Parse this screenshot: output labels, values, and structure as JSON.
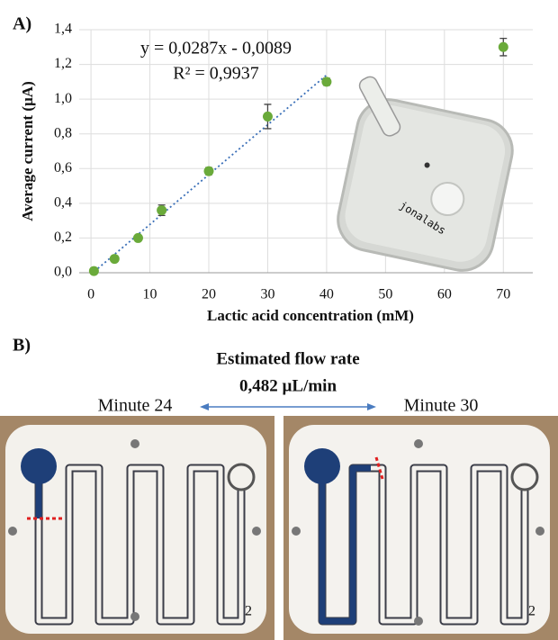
{
  "chart_data": {
    "type": "scatter",
    "panel_label": "A)",
    "x_label": "Lactic acid concentration (mM)",
    "y_label": "Average current (µA)",
    "equation": "y = 0,0287x - 0,0089",
    "r_squared": "R² = 0,9937",
    "x": [
      0.5,
      4,
      8,
      12,
      20,
      30,
      40,
      70
    ],
    "values": [
      0.01,
      0.08,
      0.2,
      0.36,
      0.585,
      0.9,
      1.1,
      1.3
    ],
    "errors": [
      0.01,
      0.01,
      0.01,
      0.03,
      0.02,
      0.07,
      0.02,
      0.05
    ],
    "color": "#6aaa3a",
    "trendline": {
      "slope": 0.0287,
      "intercept": -0.0089,
      "x_range": [
        0,
        40
      ],
      "color": "#3a6fb8"
    },
    "xlim": [
      -2,
      75
    ],
    "xticks": [
      0,
      10,
      20,
      30,
      40,
      50,
      60,
      70
    ],
    "ylim": [
      0,
      1.4
    ],
    "yticks": [
      {
        "value": 0,
        "label": "0,0"
      },
      {
        "value": 0.2,
        "label": "0,2"
      },
      {
        "value": 0.4,
        "label": "0,4"
      },
      {
        "value": 0.6,
        "label": "0,6"
      },
      {
        "value": 0.8,
        "label": "0,8"
      },
      {
        "value": 1.0,
        "label": "1,0"
      },
      {
        "value": 1.2,
        "label": "1,2"
      },
      {
        "value": 1.4,
        "label": "1,4"
      }
    ],
    "grid": true,
    "device_label": "jonalabs"
  },
  "panel_b": {
    "label": "B)",
    "title": "Estimated flow rate",
    "flow_rate": "0,482 µL/min",
    "left_caption": "Minute 24",
    "right_caption": "Minute 30",
    "chip_number": "2"
  }
}
